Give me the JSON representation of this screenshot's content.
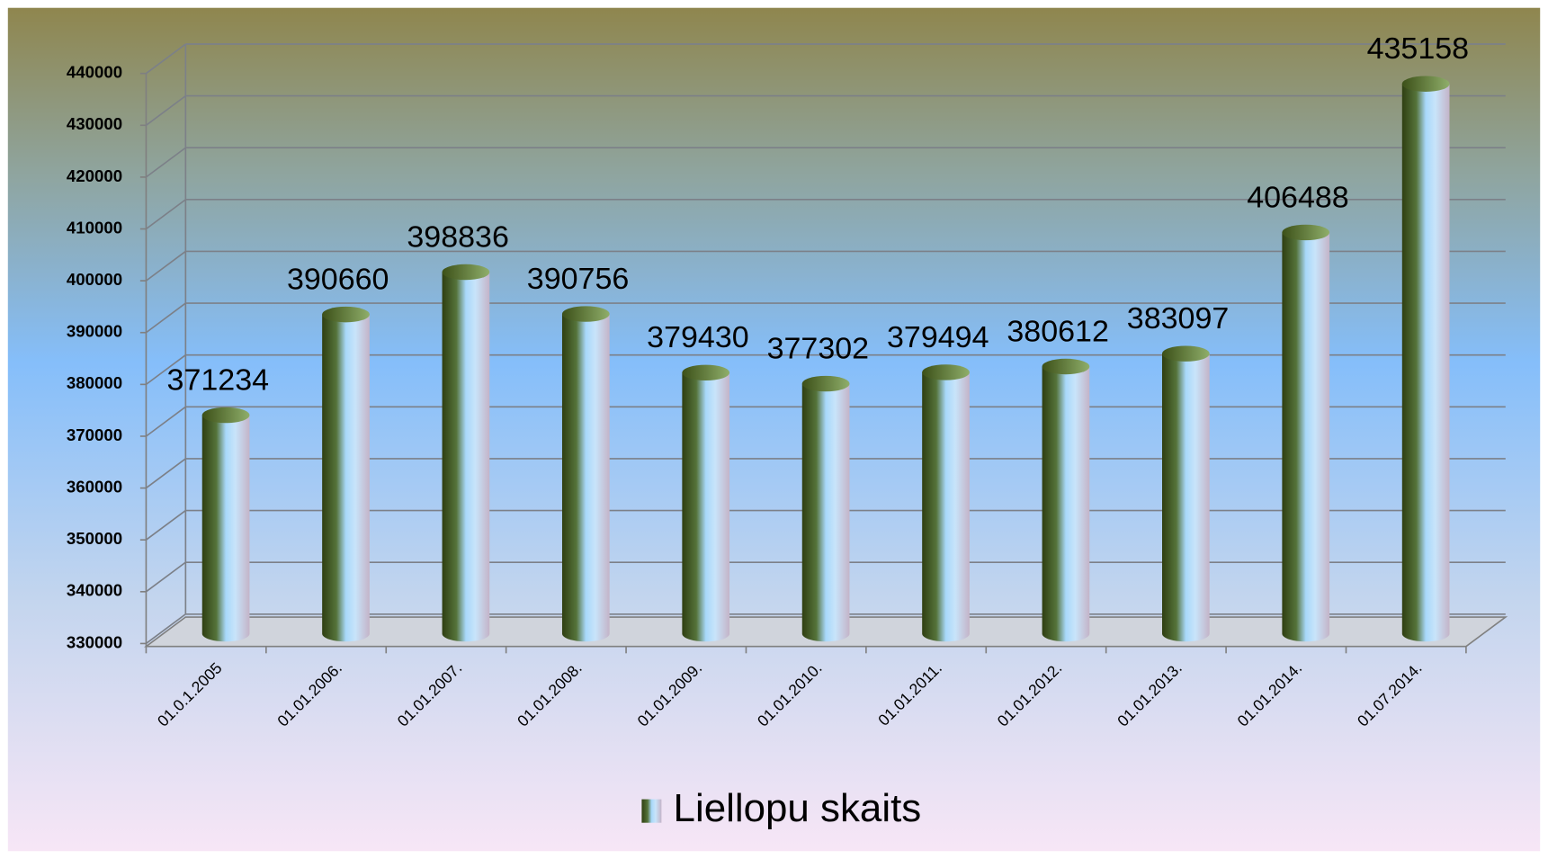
{
  "chart_data": {
    "type": "bar",
    "categories": [
      "01.0.1.2005",
      "01.01.2006.",
      "01.01.2007.",
      "01.01.2008.",
      "01.01.2009.",
      "01.01.2010.",
      "01.01.2011.",
      "01.01.2012.",
      "01.01.2013.",
      "01.01.2014.",
      "01.07.2014."
    ],
    "series": [
      {
        "name": "Liellopu skaits",
        "color": "#3d5a1e",
        "values": [
          371234,
          390660,
          398836,
          390756,
          379430,
          377302,
          379494,
          380612,
          383097,
          406488,
          435158
        ]
      }
    ],
    "ylim": [
      330000,
      440000
    ],
    "yticks": [
      330000,
      340000,
      350000,
      360000,
      370000,
      380000,
      390000,
      400000,
      410000,
      420000,
      430000,
      440000
    ],
    "grid": true,
    "legend": "bottom"
  }
}
